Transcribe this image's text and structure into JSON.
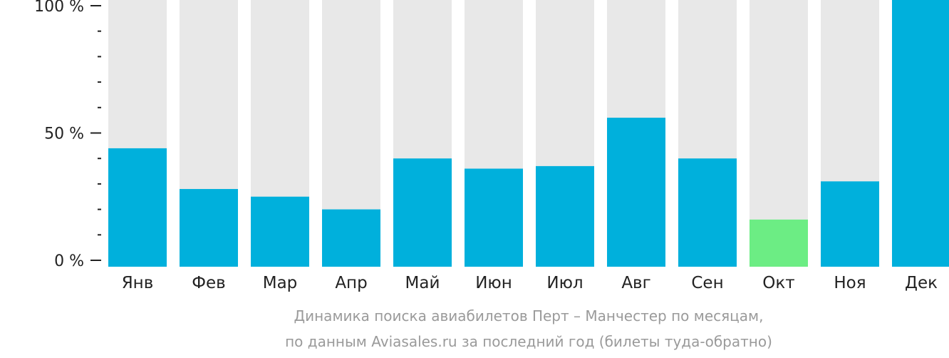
{
  "chart_data": {
    "type": "bar",
    "categories": [
      "Янв",
      "Фев",
      "Мар",
      "Апр",
      "Май",
      "Июн",
      "Июл",
      "Авг",
      "Сен",
      "Окт",
      "Ноя",
      "Дек"
    ],
    "values": [
      44,
      28,
      25,
      20,
      40,
      36,
      37,
      56,
      40,
      16,
      31,
      100
    ],
    "ylim": [
      0,
      100
    ],
    "ytick_labels": [
      "0 %",
      "50 %",
      "100 %"
    ],
    "title": "Динамика поиска авиабилетов Перт – Манчестер по месяцам,",
    "subtitle": "по данным Aviasales.ru за последний год (билеты туда-обратно)",
    "highlight_category": "Окт",
    "colors": {
      "bar": "#00b0dc",
      "highlight": "#6ced84",
      "background_bar": "#e8e8e8",
      "axis": "#222222",
      "caption": "#9a9a9a"
    }
  }
}
